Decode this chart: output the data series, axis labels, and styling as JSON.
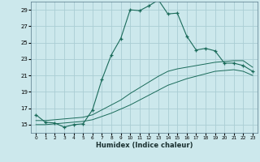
{
  "background_color": "#cce8ec",
  "grid_color": "#aacdd4",
  "line_color": "#1a6b5a",
  "xlim": [
    -0.5,
    23.5
  ],
  "ylim": [
    14,
    30
  ],
  "yticks": [
    15,
    17,
    19,
    21,
    23,
    25,
    27,
    29
  ],
  "xticks": [
    0,
    1,
    2,
    3,
    4,
    5,
    6,
    7,
    8,
    9,
    10,
    11,
    12,
    13,
    14,
    15,
    16,
    17,
    18,
    19,
    20,
    21,
    22,
    23
  ],
  "xlabel": "Humidex (Indice chaleur)",
  "series1_x": [
    0,
    1,
    2,
    3,
    4,
    5,
    6,
    7,
    8,
    9,
    10,
    11,
    12,
    13,
    14,
    15,
    16,
    17,
    18,
    19,
    20,
    21,
    22,
    23
  ],
  "series1_y": [
    16.2,
    15.3,
    15.2,
    14.7,
    15.0,
    15.1,
    16.8,
    20.5,
    23.5,
    25.5,
    29.0,
    28.9,
    29.5,
    30.2,
    28.5,
    28.6,
    25.8,
    24.1,
    24.3,
    24.0,
    22.5,
    22.5,
    22.2,
    21.5
  ],
  "series2_x": [
    0,
    1,
    2,
    3,
    4,
    5,
    6,
    7,
    8,
    9,
    10,
    11,
    12,
    13,
    14,
    15,
    16,
    17,
    18,
    19,
    20,
    21,
    22,
    23
  ],
  "series2_y": [
    15.5,
    15.5,
    15.6,
    15.7,
    15.8,
    15.9,
    16.2,
    16.8,
    17.4,
    18.0,
    18.8,
    19.5,
    20.2,
    20.9,
    21.5,
    21.8,
    22.0,
    22.2,
    22.4,
    22.6,
    22.7,
    22.8,
    22.8,
    22.0
  ],
  "series3_x": [
    0,
    1,
    2,
    3,
    4,
    5,
    6,
    7,
    8,
    9,
    10,
    11,
    12,
    13,
    14,
    15,
    16,
    17,
    18,
    19,
    20,
    21,
    22,
    23
  ],
  "series3_y": [
    15.0,
    15.0,
    15.1,
    15.2,
    15.3,
    15.4,
    15.6,
    16.0,
    16.4,
    16.9,
    17.4,
    18.0,
    18.6,
    19.2,
    19.8,
    20.2,
    20.6,
    20.9,
    21.2,
    21.5,
    21.6,
    21.7,
    21.5,
    21.0
  ]
}
